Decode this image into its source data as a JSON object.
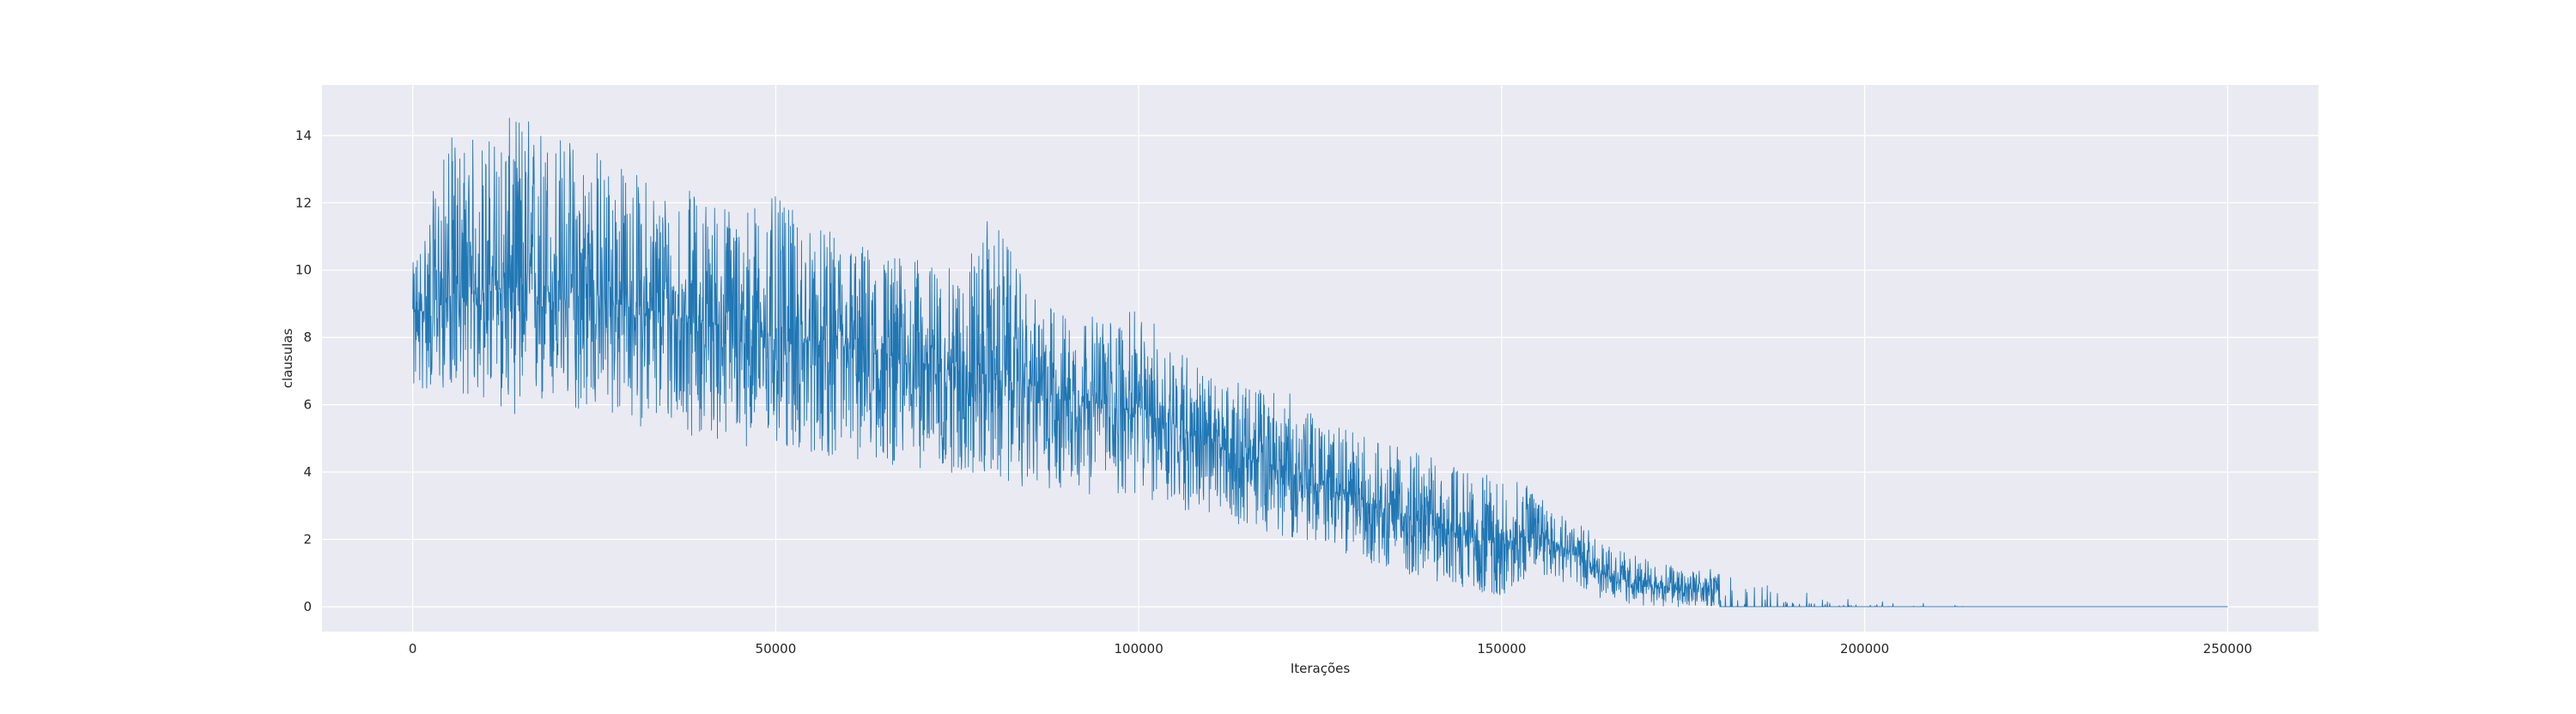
{
  "chart_data": {
    "type": "line",
    "title": "",
    "xlabel": "Iterações",
    "ylabel": "clausulas",
    "xlim": [
      -12500,
      262500
    ],
    "ylim": [
      -0.74,
      15.5
    ],
    "xticks": [
      0,
      50000,
      100000,
      150000,
      200000,
      250000
    ],
    "xtick_labels": [
      "0",
      "50000",
      "100000",
      "150000",
      "200000",
      "250000"
    ],
    "yticks": [
      0,
      2,
      4,
      6,
      8,
      10,
      12,
      14
    ],
    "ytick_labels": [
      "0",
      "2",
      "4",
      "6",
      "8",
      "10",
      "12",
      "14"
    ],
    "grid": true,
    "background_color": "#eaeaf2",
    "grid_color": "#ffffff",
    "line_color": "#1f77b4",
    "series": [
      {
        "x": [
          0,
          5000,
          10000,
          15000,
          20000,
          25000,
          30000,
          35000,
          40000,
          45000,
          50000,
          55000,
          60000,
          65000,
          70000,
          75000,
          80000,
          85000,
          90000,
          95000,
          100000,
          105000,
          110000,
          115000,
          120000,
          125000,
          130000,
          135000,
          140000,
          145000,
          150000,
          155000,
          160000,
          165000,
          170000,
          175000,
          180000,
          185000,
          190000,
          195000,
          200000,
          205000,
          210000,
          215000,
          220000,
          230000,
          240000,
          250000
        ],
        "mean": [
          8.6,
          9.2,
          9.4,
          9.5,
          9.3,
          9.2,
          8.9,
          8.7,
          8.5,
          8.2,
          8.0,
          7.8,
          7.6,
          7.4,
          7.2,
          7.0,
          6.9,
          6.6,
          6.3,
          6.0,
          5.8,
          5.4,
          4.8,
          4.4,
          4.0,
          3.6,
          3.2,
          2.8,
          2.5,
          2.1,
          1.9,
          2.2,
          1.6,
          0.9,
          0.6,
          0.55,
          0.5,
          0.25,
          0.12,
          0.06,
          0.04,
          0.03,
          0.0,
          0.0,
          0.0,
          0.0,
          0.0,
          0.0
        ],
        "min": [
          6.2,
          6.5,
          6.0,
          5.6,
          5.8,
          5.7,
          5.4,
          5.2,
          5.0,
          4.8,
          4.6,
          4.5,
          4.3,
          4.2,
          4.1,
          3.9,
          3.7,
          3.5,
          3.4,
          3.3,
          3.2,
          2.9,
          2.6,
          2.4,
          2.1,
          1.8,
          1.5,
          1.0,
          0.8,
          0.5,
          0.3,
          1.0,
          0.6,
          0.1,
          0.0,
          0.0,
          0.0,
          0.0,
          0.0,
          0.0,
          0.0,
          0.0,
          0.0,
          0.0,
          0.0,
          0.0,
          0.0,
          0.0
        ],
        "max": [
          10.2,
          14.0,
          14.0,
          14.8,
          14.2,
          13.8,
          13.0,
          12.6,
          12.3,
          12.0,
          12.2,
          11.3,
          11.0,
          10.6,
          10.3,
          10.0,
          11.8,
          9.2,
          8.8,
          8.6,
          8.8,
          8.0,
          6.8,
          6.6,
          6.5,
          5.5,
          5.2,
          4.8,
          4.5,
          4.1,
          3.8,
          3.6,
          2.6,
          1.8,
          1.4,
          1.2,
          1.1,
          0.8,
          0.5,
          0.3,
          0.2,
          0.2,
          0.1,
          0.0,
          0.0,
          0.0,
          0.0,
          0.0
        ],
        "samples": 5200
      }
    ]
  }
}
